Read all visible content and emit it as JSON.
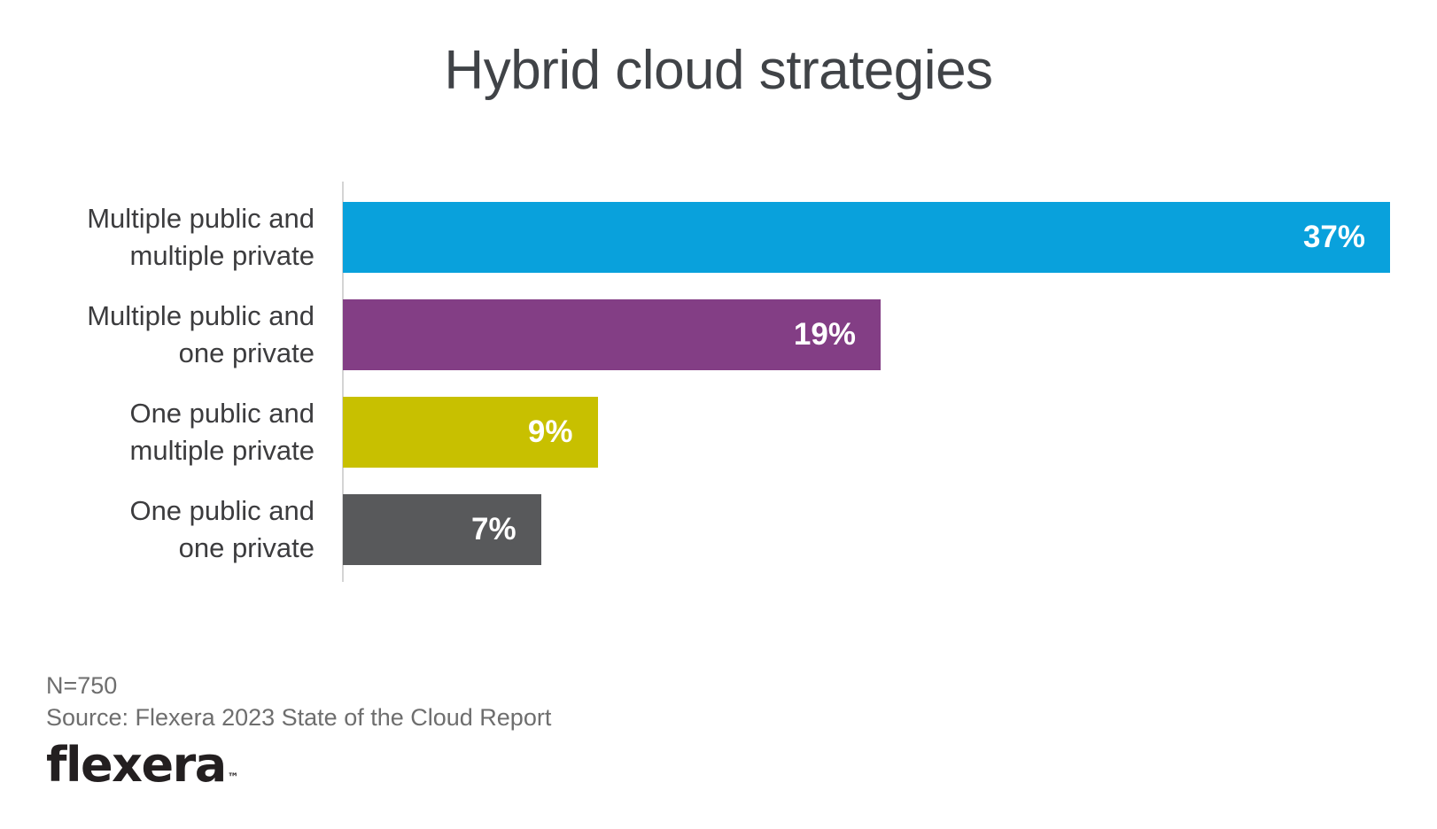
{
  "title": "Hybrid cloud strategies",
  "chart_data": {
    "type": "bar",
    "orientation": "horizontal",
    "categories": [
      [
        "Multiple public and",
        "multiple private"
      ],
      [
        "Multiple public and",
        "one private"
      ],
      [
        "One public and",
        "multiple private"
      ],
      [
        "One public and",
        "one private"
      ]
    ],
    "values": [
      37,
      19,
      9,
      7
    ],
    "value_labels": [
      "37%",
      "19%",
      "9%",
      "7%"
    ],
    "bar_colors": [
      "#09A1DC",
      "#833E85",
      "#C8C000",
      "#58595B"
    ],
    "axis_max": 37,
    "xlabel": "",
    "ylabel": "",
    "grid": false,
    "legend": false,
    "value_label_position": "inside-end"
  },
  "footer": {
    "sample_size": "N=750",
    "source": "Source: Flexera 2023 State of the Cloud Report",
    "logo_text": "flexera",
    "logo_tm": "™"
  },
  "colors": {
    "background": "#FFFFFF",
    "title": "#404347",
    "category_label": "#3C3C3E",
    "value_label": "#FFFFFF",
    "axis_line": "#D4D4D4",
    "footer_text": "#6E6E6E",
    "logo": "#231F20"
  }
}
